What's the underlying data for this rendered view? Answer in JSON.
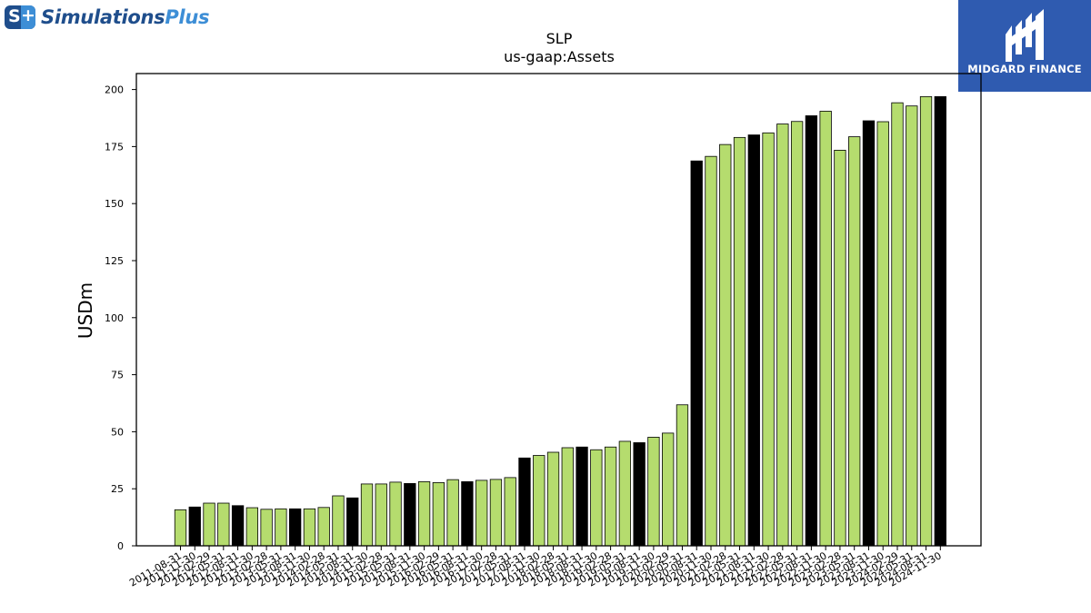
{
  "logos": {
    "left": {
      "mark_s": "S",
      "mark_plus": "+",
      "name_main": "Simulations",
      "name_accent": "Plus"
    },
    "right": {
      "caption": "MIDGARD FINANCE"
    }
  },
  "colors": {
    "accent_bar": "#b5dc6e",
    "highlight_bar": "#000000",
    "bar_edge": "#000000",
    "logo_blue": "#1f4e8c",
    "midgard_blue": "#2f5bb0"
  },
  "chart_data": {
    "type": "bar",
    "title": "SLP",
    "subtitle": "us-gaap:Assets",
    "xlabel": "",
    "ylabel": "USDm",
    "ylim": [
      0,
      207
    ],
    "yticks": [
      0,
      25,
      50,
      75,
      100,
      125,
      150,
      175,
      200
    ],
    "grid": false,
    "categories": [
      "2011-08-31",
      "2011-11-30",
      "2012-02-29",
      "2012-05-31",
      "2012-08-31",
      "2012-11-30",
      "2013-02-28",
      "2013-05-31",
      "2013-08-31",
      "2013-11-30",
      "2014-02-28",
      "2014-05-31",
      "2014-08-31",
      "2014-11-30",
      "2015-02-28",
      "2015-05-31",
      "2015-08-31",
      "2015-11-30",
      "2016-02-29",
      "2016-05-31",
      "2016-08-31",
      "2016-11-30",
      "2017-02-28",
      "2017-05-31",
      "2017-08-31",
      "2017-11-30",
      "2018-02-28",
      "2018-05-31",
      "2018-08-31",
      "2018-11-30",
      "2019-02-28",
      "2019-05-31",
      "2019-08-31",
      "2019-11-30",
      "2020-02-29",
      "2020-05-31",
      "2020-08-31",
      "2020-11-30",
      "2021-02-28",
      "2021-05-31",
      "2021-08-31",
      "2021-11-30",
      "2022-02-28",
      "2022-05-31",
      "2022-08-31",
      "2022-11-30",
      "2023-02-28",
      "2023-05-31",
      "2023-08-31",
      "2023-11-30",
      "2024-02-29",
      "2024-05-31",
      "2024-08-31",
      "2024-11-30"
    ],
    "values": [
      15.8,
      17.0,
      18.7,
      18.7,
      17.6,
      16.7,
      16.0,
      16.2,
      16.2,
      16.2,
      16.8,
      21.9,
      21.0,
      27.1,
      27.1,
      27.9,
      27.3,
      28.1,
      27.7,
      29.0,
      28.1,
      28.7,
      29.1,
      29.9,
      38.5,
      39.6,
      41.0,
      43.0,
      43.3,
      42.1,
      43.3,
      45.8,
      45.2,
      47.6,
      49.4,
      61.8,
      168.7,
      170.7,
      175.9,
      179.0,
      180.1,
      181.0,
      184.9,
      186.0,
      188.5,
      190.5,
      173.4,
      179.3,
      186.3,
      185.9,
      194.2,
      192.8,
      196.9,
      196.9
    ],
    "highlighted": [
      "2011-11-30",
      "2012-08-31",
      "2013-08-31",
      "2014-08-31",
      "2015-08-31",
      "2016-08-31",
      "2017-08-31",
      "2018-08-31",
      "2019-08-31",
      "2020-08-31",
      "2021-08-31",
      "2022-08-31",
      "2023-08-31",
      "2024-11-30"
    ]
  }
}
